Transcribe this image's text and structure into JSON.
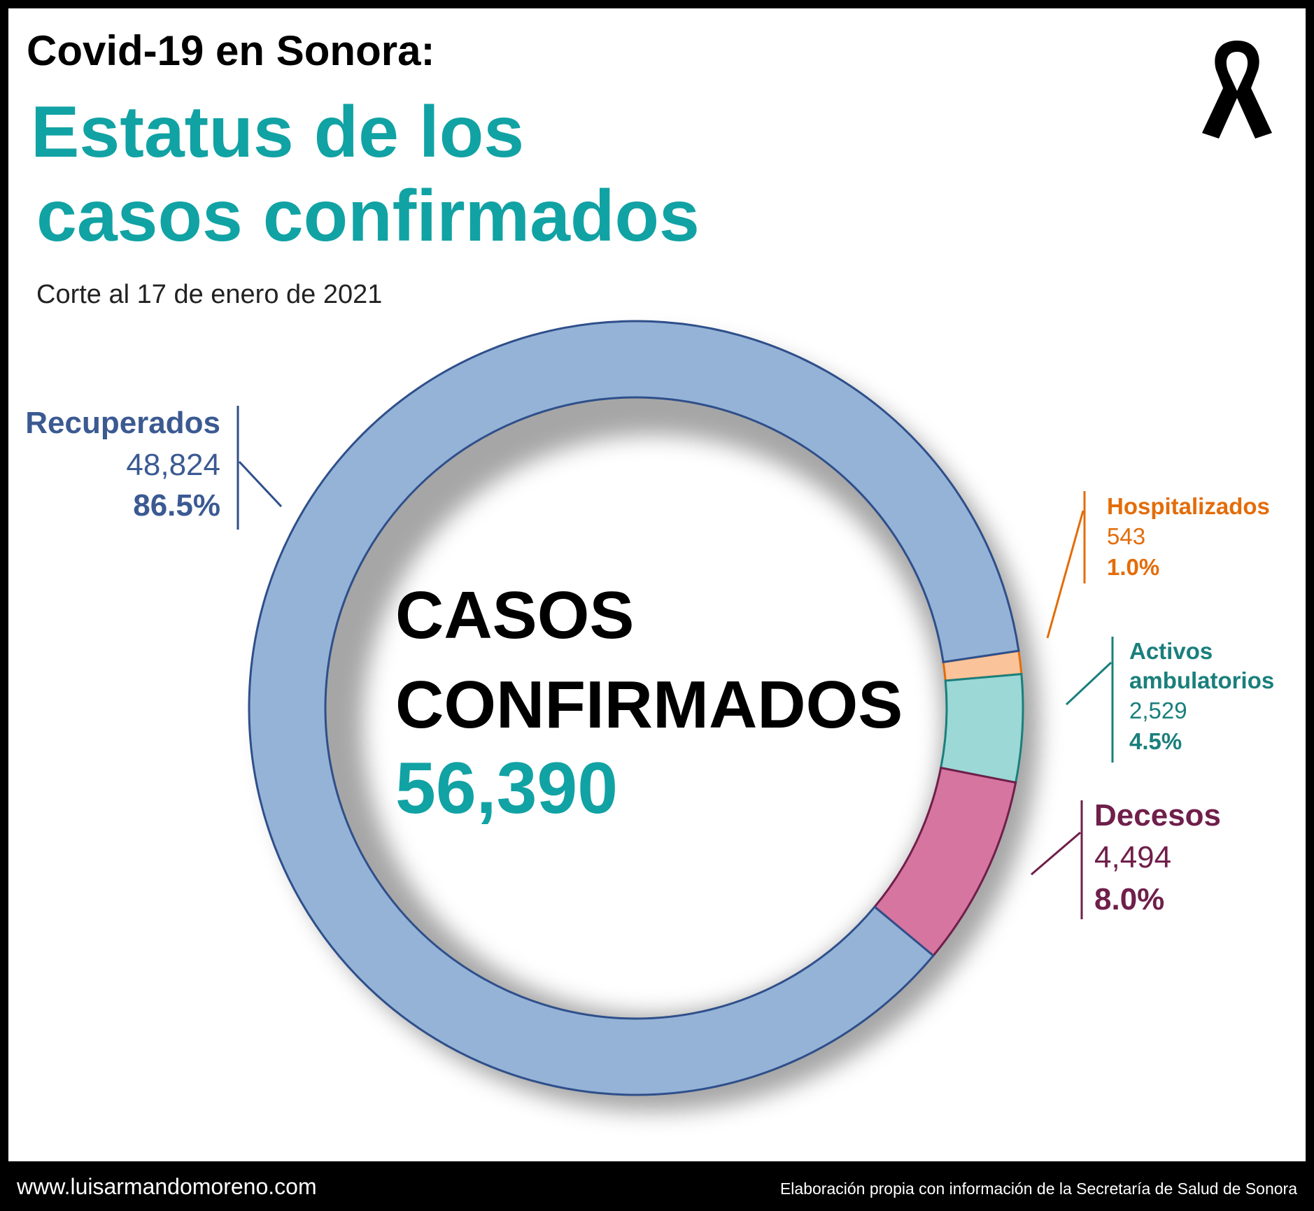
{
  "header": {
    "supertitle": "Covid-19 en Sonora:",
    "title_line1": "Estatus de los",
    "title_line2": "casos confirmados",
    "subtitle": "Corte al 17 de enero de 2021"
  },
  "ribbon_icon": "mourning-ribbon-icon",
  "footer": {
    "website": "www.luisarmandomoreno.com",
    "source": "Elaboración propia con información de la Secretaría de Salud de Sonora"
  },
  "chart_data": {
    "type": "pie",
    "center": {
      "line1": "CASOS",
      "line2": "CONFIRMADOS",
      "total": "56,390"
    },
    "slices": [
      {
        "name": "Recuperados",
        "value": 48824,
        "value_label": "48,824",
        "percent_label": "86.5%",
        "fill": "#95B3D7",
        "stroke": "#2E4F8A",
        "text_color": "#3B5A92"
      },
      {
        "name": "Hospitalizados",
        "value": 543,
        "value_label": "543",
        "percent_label": "1.0%",
        "fill": "#FBC399",
        "stroke": "#E36C09",
        "text_color": "#E36C09"
      },
      {
        "name": "Activos ambulatorios",
        "name_lines": [
          "Activos",
          "ambulatorios"
        ],
        "value": 2529,
        "value_label": "2,529",
        "percent_label": "4.5%",
        "fill": "#9CD8D6",
        "stroke": "#1A7F7C",
        "text_color": "#1A7F7C"
      },
      {
        "name": "Decesos",
        "value": 4494,
        "value_label": "4,494",
        "percent_label": "8.0%",
        "fill": "#D6759F",
        "stroke": "#6F1F4A",
        "text_color": "#6F1F4A"
      }
    ]
  }
}
